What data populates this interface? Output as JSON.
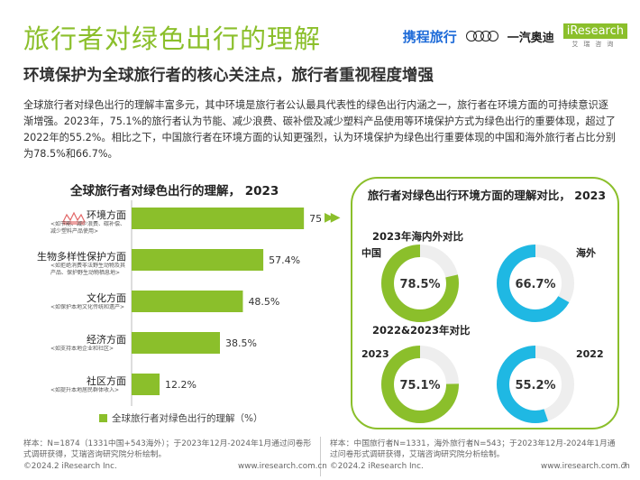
{
  "header": {
    "title": "旅行者对绿色出行的理解",
    "subtitle": "环境保护为全球旅行者的核心关注点，旅行者重视程度增强",
    "logos": {
      "ctrip": "携程旅行",
      "faw": "一汽奥迪",
      "iresearch": "iResearch",
      "iresearch_sub": "艾瑞咨询"
    }
  },
  "intro_paragraph": "全球旅行者对绿色出行的理解丰富多元，其中环境是旅行者公认最具代表性的绿色出行内涵之一，旅行者在环境方面的可持续意识逐渐增强。2023年，75.1%的旅行者认为节能、减少浪费、碳补偿及减少塑料产品使用等环境保护方式为绿色出行的重要体现，超过了2022年的55.2%。相比之下，中国旅行者在环境方面的认知更强烈，认为环境保护为绿色出行重要体现的中国和海外旅行者占比分别为78.5%和66.7%。",
  "chart_data": [
    {
      "type": "bar",
      "orientation": "horizontal",
      "title": "全球旅行者对绿色出行的理解， 2023",
      "categories": [
        "环境方面",
        "生物多样性保护方面",
        "文化方面",
        "经济方面",
        "社区方面"
      ],
      "category_notes": [
        "<如节能、减少浪费、碳补偿、减少塑料产品使用>",
        "<如拒绝消费非法野生动物及其产品、保护野生动物栖息地>",
        "<如保护本地文化传统和遗产>",
        "<如支持本地企业和社区>",
        "<如提升本地居民群体收入>"
      ],
      "series": [
        {
          "name": "全球旅行者对绿色出行的理解（%）",
          "values": [
            75.1,
            57.4,
            48.5,
            38.5,
            12.2
          ],
          "color": "#8bbf2b"
        }
      ],
      "value_labels": [
        "75.1%",
        "57.4%",
        "48.5%",
        "38.5%",
        "12.2%"
      ],
      "xlim": [
        0,
        100
      ],
      "legend": "bottom"
    },
    {
      "type": "pie",
      "title": "旅行者对绿色出行环境方面的理解对比， 2023",
      "panels": [
        {
          "section": "2023年海内外对比",
          "items": [
            {
              "label": "中国",
              "value": 78.5,
              "text": "78.5%",
              "color": "#8bbf2b"
            },
            {
              "label": "海外",
              "value": 66.7,
              "text": "66.7%",
              "color": "#1fb8e3"
            }
          ]
        },
        {
          "section": "2022&2023年对比",
          "items": [
            {
              "label": "2023",
              "value": 75.1,
              "text": "75.1%",
              "color": "#8bbf2b"
            },
            {
              "label": "2022",
              "value": 55.2,
              "text": "55.2%",
              "color": "#1fb8e3"
            }
          ]
        }
      ],
      "remainder_color": "#eeeeee"
    }
  ],
  "footnotes": {
    "left": "样本：N=1874（1331中国+543海外）；于2023年12月-2024年1月通过问卷形式调研获得，艾瑞咨询研究院分析绘制。",
    "right": "样本：中国旅行者N=1331，海外旅行者N=543；于2023年12月-2024年1月通过问卷形式调研获得，艾瑞咨询研究院分析绘制。"
  },
  "footer": {
    "copyright": "©2024.2 iResearch Inc.",
    "website": "www.iresearch.com.cn",
    "page_number": "7"
  }
}
